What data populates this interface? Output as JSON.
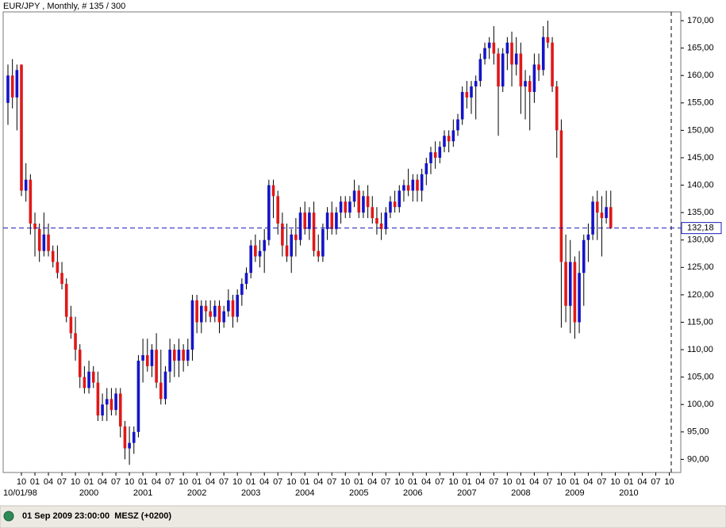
{
  "chart_data": {
    "type": "candlestick",
    "title": "EUR/JPY , Monthly, # 135 / 300",
    "x": [
      "1998-07",
      "1998-08",
      "1998-09",
      "1998-10",
      "1998-11",
      "1998-12",
      "1999-01",
      "1999-02",
      "1999-03",
      "1999-04",
      "1999-05",
      "1999-06",
      "1999-07",
      "1999-08",
      "1999-09",
      "1999-10",
      "1999-11",
      "1999-12",
      "2000-01",
      "2000-02",
      "2000-03",
      "2000-04",
      "2000-05",
      "2000-06",
      "2000-07",
      "2000-08",
      "2000-09",
      "2000-10",
      "2000-11",
      "2000-12",
      "2001-01",
      "2001-02",
      "2001-03",
      "2001-04",
      "2001-05",
      "2001-06",
      "2001-07",
      "2001-08",
      "2001-09",
      "2001-10",
      "2001-11",
      "2001-12",
      "2002-01",
      "2002-02",
      "2002-03",
      "2002-04",
      "2002-05",
      "2002-06",
      "2002-07",
      "2002-08",
      "2002-09",
      "2002-10",
      "2002-11",
      "2002-12",
      "2003-01",
      "2003-02",
      "2003-03",
      "2003-04",
      "2003-05",
      "2003-06",
      "2003-07",
      "2003-08",
      "2003-09",
      "2003-10",
      "2003-11",
      "2003-12",
      "2004-01",
      "2004-02",
      "2004-03",
      "2004-04",
      "2004-05",
      "2004-06",
      "2004-07",
      "2004-08",
      "2004-09",
      "2004-10",
      "2004-11",
      "2004-12",
      "2005-01",
      "2005-02",
      "2005-03",
      "2005-04",
      "2005-05",
      "2005-06",
      "2005-07",
      "2005-08",
      "2005-09",
      "2005-10",
      "2005-11",
      "2005-12",
      "2006-01",
      "2006-02",
      "2006-03",
      "2006-04",
      "2006-05",
      "2006-06",
      "2006-07",
      "2006-08",
      "2006-09",
      "2006-10",
      "2006-11",
      "2006-12",
      "2007-01",
      "2007-02",
      "2007-03",
      "2007-04",
      "2007-05",
      "2007-06",
      "2007-07",
      "2007-08",
      "2007-09",
      "2007-10",
      "2007-11",
      "2007-12",
      "2008-01",
      "2008-02",
      "2008-03",
      "2008-04",
      "2008-05",
      "2008-06",
      "2008-07",
      "2008-08",
      "2008-09",
      "2008-10",
      "2008-11",
      "2008-12",
      "2009-01",
      "2009-02",
      "2009-03",
      "2009-04",
      "2009-05",
      "2009-06",
      "2009-07",
      "2009-08",
      "2009-09"
    ],
    "open": [
      155,
      160,
      156,
      162,
      139,
      141,
      133,
      132,
      128,
      131,
      128,
      126,
      124,
      122,
      116,
      113,
      110,
      105,
      103,
      106,
      104,
      98,
      100,
      101,
      99,
      102,
      96,
      92,
      93,
      95,
      108,
      109,
      107,
      110,
      104,
      101,
      106,
      110,
      108,
      110,
      108,
      110,
      119,
      115,
      118,
      117,
      116,
      118,
      115,
      117,
      119,
      116,
      120,
      122,
      124,
      129,
      127,
      128,
      130,
      140,
      138,
      133,
      129,
      127,
      131,
      130,
      135,
      132,
      135,
      128,
      127,
      132,
      135,
      132,
      135,
      137,
      135,
      137,
      139,
      135,
      138,
      136,
      134,
      133,
      132,
      135,
      137,
      136,
      139,
      140,
      139,
      141,
      139,
      142,
      144,
      146,
      145,
      147,
      149,
      148,
      150,
      152,
      157,
      156,
      158,
      159,
      163,
      165,
      166,
      164,
      158,
      164,
      166,
      162,
      164,
      158,
      159,
      157,
      162,
      161,
      167,
      166,
      158,
      150,
      126,
      118,
      126,
      115,
      124,
      130,
      131,
      137,
      135,
      134,
      136
    ],
    "high": [
      162,
      163,
      162,
      162,
      144,
      142,
      135,
      133,
      135,
      133,
      129,
      129,
      126,
      123,
      118,
      116,
      111,
      107,
      108,
      107,
      106,
      102,
      103,
      103,
      103,
      103,
      97,
      96,
      96,
      109,
      112,
      112,
      111,
      113,
      110,
      107,
      112,
      111,
      112,
      111,
      112,
      120,
      120,
      119,
      119,
      119,
      119,
      119,
      118,
      121,
      120,
      121,
      123,
      125,
      130,
      131,
      130,
      132,
      141,
      141,
      139,
      135,
      133,
      132,
      134,
      136,
      137,
      136,
      137,
      131,
      133,
      136,
      137,
      136,
      138,
      138,
      138,
      141,
      140,
      139,
      140,
      138,
      136,
      135,
      136,
      138,
      139,
      140,
      141,
      143,
      142,
      142,
      143,
      145,
      147,
      148,
      148,
      150,
      150,
      152,
      153,
      158,
      159,
      159,
      160,
      164,
      166,
      167,
      169,
      165,
      165,
      167,
      168,
      167,
      166,
      161,
      160,
      164,
      164,
      169,
      170,
      167,
      159,
      152,
      131,
      130,
      127,
      128,
      131,
      133,
      138,
      139,
      138,
      139,
      139
    ],
    "low": [
      151,
      154,
      150,
      138,
      137,
      131,
      127,
      126,
      127,
      127,
      125,
      123,
      121,
      115,
      112,
      108,
      103,
      102,
      102,
      103,
      97,
      97,
      97,
      98,
      98,
      94,
      90,
      89,
      91,
      94,
      104,
      106,
      105,
      103,
      100,
      100,
      104,
      105,
      105,
      106,
      107,
      108,
      113,
      113,
      115,
      115,
      115,
      113,
      114,
      116,
      114,
      115,
      118,
      121,
      123,
      126,
      125,
      124,
      129,
      134,
      131,
      127,
      126,
      124,
      127,
      129,
      131,
      130,
      127,
      126,
      126,
      130,
      131,
      131,
      133,
      134,
      134,
      136,
      134,
      134,
      134,
      133,
      131,
      130,
      131,
      134,
      135,
      135,
      137,
      138,
      137,
      137,
      137,
      140,
      142,
      143,
      144,
      146,
      146,
      147,
      149,
      151,
      154,
      153,
      152,
      158,
      162,
      163,
      162,
      149,
      157,
      161,
      158,
      160,
      153,
      152,
      150,
      155,
      159,
      160,
      165,
      157,
      145,
      114,
      115,
      113,
      112,
      113,
      118,
      126,
      130,
      130,
      127,
      133,
      132
    ],
    "close": [
      160,
      156,
      161,
      139,
      141,
      133,
      132,
      128,
      131,
      128,
      126,
      124,
      122,
      116,
      113,
      110,
      105,
      103,
      106,
      104,
      98,
      100,
      101,
      99,
      102,
      96,
      92,
      93,
      95,
      108,
      109,
      107,
      110,
      104,
      101,
      106,
      110,
      108,
      110,
      108,
      110,
      119,
      115,
      118,
      117,
      116,
      118,
      115,
      117,
      119,
      116,
      120,
      122,
      124,
      129,
      127,
      128,
      130,
      140,
      138,
      133,
      129,
      127,
      131,
      130,
      135,
      132,
      135,
      128,
      127,
      132,
      135,
      132,
      135,
      137,
      135,
      137,
      139,
      135,
      138,
      136,
      134,
      133,
      132,
      135,
      137,
      136,
      139,
      140,
      139,
      141,
      139,
      142,
      144,
      146,
      145,
      147,
      149,
      148,
      150,
      152,
      157,
      156,
      158,
      159,
      163,
      165,
      166,
      164,
      158,
      164,
      166,
      162,
      164,
      158,
      159,
      157,
      162,
      161,
      167,
      166,
      158,
      150,
      126,
      118,
      126,
      115,
      124,
      130,
      131,
      137,
      135,
      134,
      136,
      132.18
    ],
    "up_color": "#1414c8",
    "down_color": "#e01818",
    "ylim": [
      87.6,
      171.6
    ],
    "yticks": [
      {
        "value": 90,
        "label": "90,00"
      },
      {
        "value": 95,
        "label": "95,00"
      },
      {
        "value": 100,
        "label": "100,00"
      },
      {
        "value": 105,
        "label": "105,00"
      },
      {
        "value": 110,
        "label": "110,00"
      },
      {
        "value": 115,
        "label": "115,00"
      },
      {
        "value": 120,
        "label": "120,00"
      },
      {
        "value": 125,
        "label": "125,00"
      },
      {
        "value": 130,
        "label": "130,00"
      },
      {
        "value": 135,
        "label": "135,00"
      },
      {
        "value": 140,
        "label": "140,00"
      },
      {
        "value": 145,
        "label": "145,00"
      },
      {
        "value": 150,
        "label": "150,00"
      },
      {
        "value": 155,
        "label": "155,00"
      },
      {
        "value": 160,
        "label": "160,00"
      },
      {
        "value": 165,
        "label": "165,00"
      },
      {
        "value": 170,
        "label": "170,00"
      }
    ],
    "price_line": {
      "value": 132.18,
      "label": "132,18"
    },
    "xticks": [
      {
        "value": "1998-10",
        "label": "10"
      },
      {
        "value": "1999-01",
        "label": "01"
      },
      {
        "value": "1999-04",
        "label": "04"
      },
      {
        "value": "1999-07",
        "label": "07"
      },
      {
        "value": "1999-10",
        "label": "10"
      },
      {
        "value": "2000-01",
        "label": "01"
      },
      {
        "value": "2000-04",
        "label": "04"
      },
      {
        "value": "2000-07",
        "label": "07"
      },
      {
        "value": "2000-10",
        "label": "10"
      },
      {
        "value": "2001-01",
        "label": "01"
      },
      {
        "value": "2001-04",
        "label": "04"
      },
      {
        "value": "2001-07",
        "label": "07"
      },
      {
        "value": "2001-10",
        "label": "10"
      },
      {
        "value": "2002-01",
        "label": "01"
      },
      {
        "value": "2002-04",
        "label": "04"
      },
      {
        "value": "2002-07",
        "label": "07"
      },
      {
        "value": "2002-10",
        "label": "10"
      },
      {
        "value": "2003-01",
        "label": "01"
      },
      {
        "value": "2003-04",
        "label": "04"
      },
      {
        "value": "2003-07",
        "label": "07"
      },
      {
        "value": "2003-10",
        "label": "10"
      },
      {
        "value": "2004-01",
        "label": "01"
      },
      {
        "value": "2004-04",
        "label": "04"
      },
      {
        "value": "2004-07",
        "label": "07"
      },
      {
        "value": "2004-10",
        "label": "10"
      },
      {
        "value": "2005-01",
        "label": "01"
      },
      {
        "value": "2005-04",
        "label": "04"
      },
      {
        "value": "2005-07",
        "label": "07"
      },
      {
        "value": "2005-10",
        "label": "10"
      },
      {
        "value": "2006-01",
        "label": "01"
      },
      {
        "value": "2006-04",
        "label": "04"
      },
      {
        "value": "2006-07",
        "label": "07"
      },
      {
        "value": "2006-10",
        "label": "10"
      },
      {
        "value": "2007-01",
        "label": "01"
      },
      {
        "value": "2007-04",
        "label": "04"
      },
      {
        "value": "2007-07",
        "label": "07"
      },
      {
        "value": "2007-10",
        "label": "10"
      },
      {
        "value": "2008-01",
        "label": "01"
      },
      {
        "value": "2008-04",
        "label": "04"
      },
      {
        "value": "2008-07",
        "label": "07"
      },
      {
        "value": "2008-10",
        "label": "10"
      },
      {
        "value": "2009-01",
        "label": "01"
      },
      {
        "value": "2009-04",
        "label": "04"
      },
      {
        "value": "2009-07",
        "label": "07"
      },
      {
        "value": "2009-10",
        "label": "10"
      },
      {
        "value": "2010-01",
        "label": "01"
      },
      {
        "value": "2010-04",
        "label": "04"
      },
      {
        "value": "2010-07",
        "label": "07"
      },
      {
        "value": "2010-10",
        "label": "10"
      }
    ],
    "year_labels": [
      {
        "value": "2000-01",
        "label": "2000"
      },
      {
        "value": "2001-01",
        "label": "2001"
      },
      {
        "value": "2002-01",
        "label": "2002"
      },
      {
        "value": "2003-01",
        "label": "2003"
      },
      {
        "value": "2004-01",
        "label": "2004"
      },
      {
        "value": "2005-01",
        "label": "2005"
      },
      {
        "value": "2006-01",
        "label": "2006"
      },
      {
        "value": "2007-01",
        "label": "2007"
      },
      {
        "value": "2008-01",
        "label": "2008"
      },
      {
        "value": "2009-01",
        "label": "2009"
      },
      {
        "value": "2010-01",
        "label": "2010"
      }
    ],
    "start_label": "10/01/98",
    "status": "01 Sep 2009 23:00:00  MESZ (+0200)"
  }
}
